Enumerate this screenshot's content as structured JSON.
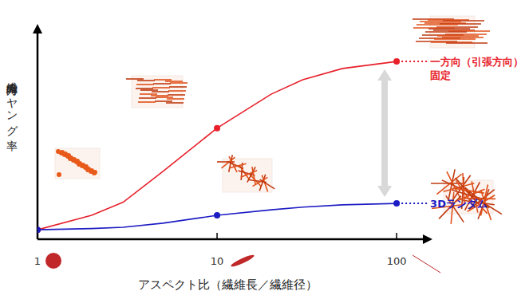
{
  "chart_data": {
    "type": "line",
    "x_label": "アスペクト比（繊維長／繊維径）",
    "y_label": "繊維方向のヤング率",
    "log": "x",
    "tick_labels": "x",
    "grid": false,
    "xlim": [
      1,
      140
    ],
    "xticks": [
      1,
      10,
      100
    ],
    "ylim": [
      0,
      100
    ],
    "yticks": [],
    "x": [
      1,
      2,
      3,
      5,
      10,
      20,
      30,
      50,
      100
    ],
    "series": [
      {
        "name": "一方向（引張方向）\n固定",
        "color": "#e8202a",
        "marker": "circle",
        "line_style": "solid",
        "values": [
          4.6,
          11.6,
          18,
          33,
          54,
          70.5,
          77.5,
          83,
          86.4
        ]
      },
      {
        "name": "3Dランダム",
        "color": "#1c1cc4",
        "marker": "circle",
        "line_style": "solid",
        "values": [
          4.6,
          5.2,
          5.8,
          7.8,
          11.6,
          14.3,
          15.6,
          16.7,
          17.4
        ]
      }
    ]
  }
}
